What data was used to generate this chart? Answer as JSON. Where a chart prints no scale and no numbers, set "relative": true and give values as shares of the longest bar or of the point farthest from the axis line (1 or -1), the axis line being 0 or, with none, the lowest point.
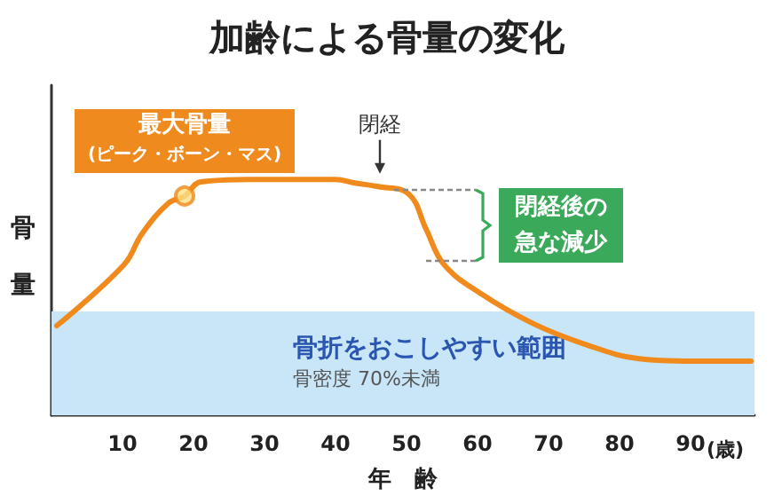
{
  "chart_data": {
    "type": "line",
    "relative": true,
    "title": "加齢による骨量の変化",
    "xlabel": "年　齢",
    "ylabel": "骨量",
    "x": [
      0.75,
      10.25,
      12.75,
      16.5,
      18.75,
      21,
      27.75,
      40,
      42.75,
      46,
      50.25,
      52.75,
      55.25,
      60.25,
      67.75,
      75.25,
      82.75,
      90.25,
      98.5
    ],
    "series": [
      {
        "color": "#f08a1c",
        "values": [
          0.38,
          0.64,
          0.77,
          0.9,
          0.93,
          0.99,
          1.0,
          1.0,
          0.985,
          0.97,
          0.94,
          0.79,
          0.64,
          0.52,
          0.39,
          0.3,
          0.24,
          0.23,
          0.23
        ]
      }
    ],
    "xlim": [
      0,
      99
    ],
    "xticks": [
      10,
      20,
      30,
      40,
      50,
      60,
      70,
      80,
      90
    ],
    "bands": [
      {
        "axis": "y",
        "from": 0,
        "to": 0.44,
        "label": "骨折をおこしやすい範囲",
        "color": "#c8e6f8"
      }
    ],
    "annotations": [
      {
        "text": "最大骨量\n(ピーク・ボーン・マス)",
        "x": 18.75,
        "y": 0.93
      },
      {
        "text": "閉経",
        "x": 46.25,
        "y": 1.01
      },
      "閉経後の急な減少",
      "骨密度 70%未満",
      "(歳)"
    ],
    "grid": false,
    "marker": "none",
    "line_style": "solid"
  }
}
